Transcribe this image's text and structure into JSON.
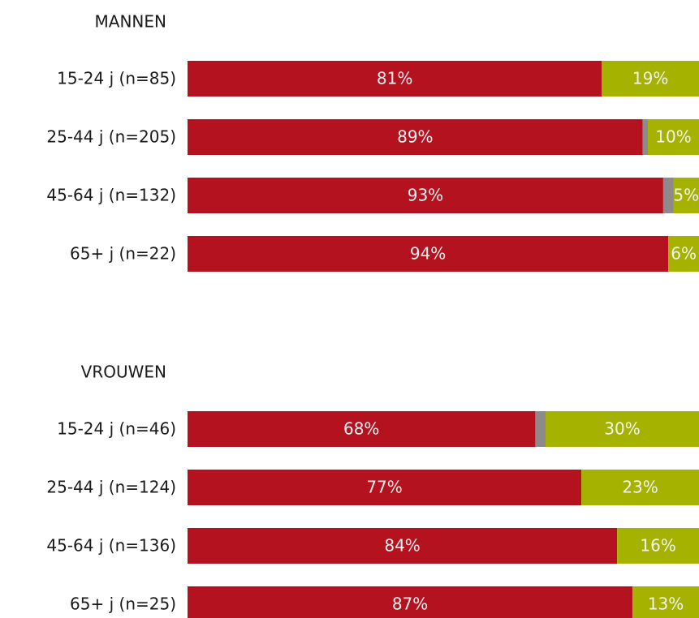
{
  "chart_data": [
    {
      "type": "stacked-bar",
      "title": "MANNEN",
      "categories": [
        "15-24 j (n=85)",
        "25-44 j (n=205)",
        "45-64 j (n=132)",
        "65+ j (n=22)"
      ],
      "xlim": [
        0,
        100
      ],
      "series": [
        {
          "color": "#b5121f",
          "values": [
            81,
            89,
            93,
            94
          ],
          "value_labels": [
            "81%",
            "89%",
            "93%",
            "94%"
          ]
        },
        {
          "color": "#8e8a8c",
          "values": [
            0,
            1,
            2,
            0
          ]
        },
        {
          "color": "#a5b300",
          "values": [
            19,
            10,
            5,
            6
          ],
          "value_labels": [
            "19%",
            "10%",
            "5%",
            "6%"
          ]
        }
      ]
    },
    {
      "type": "stacked-bar",
      "title": "VROUWEN",
      "categories": [
        "15-24 j (n=46)",
        "25-44 j (n=124)",
        "45-64 j (n=136)",
        "65+ j (n=25)"
      ],
      "xlim": [
        0,
        100
      ],
      "series": [
        {
          "color": "#b5121f",
          "values": [
            68,
            77,
            84,
            87
          ],
          "value_labels": [
            "68%",
            "77%",
            "84%",
            "87%"
          ]
        },
        {
          "color": "#8e8a8c",
          "values": [
            2,
            0,
            0,
            0
          ]
        },
        {
          "color": "#a5b300",
          "values": [
            30,
            23,
            16,
            13
          ],
          "value_labels": [
            "30%",
            "23%",
            "16%",
            "13%"
          ]
        }
      ]
    }
  ]
}
